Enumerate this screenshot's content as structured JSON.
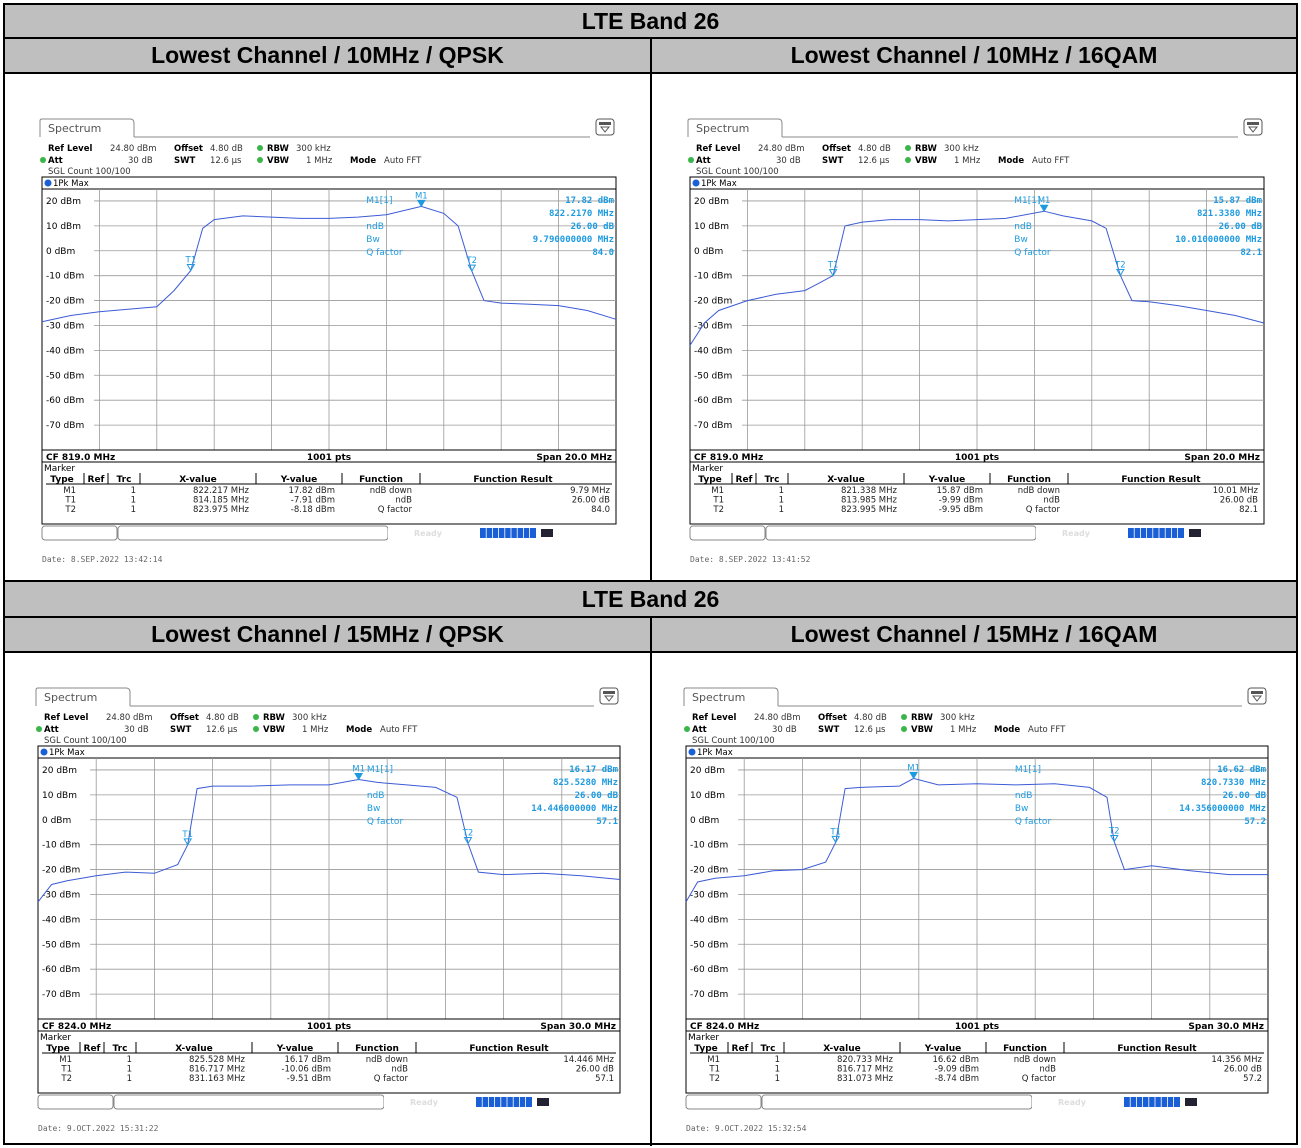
{
  "section_titles": [
    "LTE Band 26",
    "LTE Band 26"
  ],
  "cells": [
    {
      "title": "Lowest Channel / 10MHz / QPSK",
      "spectrum_label": "Spectrum",
      "ref_level_label": "Ref Level",
      "ref_level": "24.80 dBm",
      "offset_label": "Offset",
      "offset": "4.80 dB",
      "rbw_label": "RBW",
      "rbw": "300 kHz",
      "att_label": "Att",
      "att": "30 dB",
      "swt_label": "SWT",
      "swt": "12.6 µs",
      "vbw_label": "VBW",
      "vbw": "1 MHz",
      "mode_label": "Mode",
      "mode": "Auto FFT",
      "sgl_count": "SGL Count 100/100",
      "trace_label": "1Pk Max",
      "cf": "CF 819.0 MHz",
      "pts": "1001 pts",
      "span": "Span 20.0 MHz",
      "marker_label": "Marker",
      "info_labels": [
        "M1[1]",
        "ndB",
        "Bw",
        "Q factor"
      ],
      "info_values": [
        "17.82 dBm",
        "822.2170 MHz",
        "26.00 dB",
        "9.790000000 MHz",
        "84.0"
      ],
      "marker_headers": [
        "Type",
        "Ref",
        "Trc",
        "X-value",
        "Y-value",
        "Function",
        "Function Result"
      ],
      "marker_rows": [
        [
          "M1",
          "",
          "1",
          "822.217 MHz",
          "17.82 dBm",
          "ndB down",
          "9.79 MHz"
        ],
        [
          "T1",
          "",
          "1",
          "814.185 MHz",
          "-7.91 dBm",
          "ndB",
          "26.00 dB"
        ],
        [
          "T2",
          "",
          "1",
          "823.975 MHz",
          "-8.18 dBm",
          "Q factor",
          "84.0"
        ]
      ],
      "date": "Date: 8.SEP.2022  13:42:14",
      "status_text": "Ready"
    },
    {
      "title": "Lowest Channel / 10MHz / 16QAM",
      "spectrum_label": "Spectrum",
      "ref_level_label": "Ref Level",
      "ref_level": "24.80 dBm",
      "offset_label": "Offset",
      "offset": "4.80 dB",
      "rbw_label": "RBW",
      "rbw": "300 kHz",
      "att_label": "Att",
      "att": "30 dB",
      "swt_label": "SWT",
      "swt": "12.6 µs",
      "vbw_label": "VBW",
      "vbw": "1 MHz",
      "mode_label": "Mode",
      "mode": "Auto FFT",
      "sgl_count": "SGL Count 100/100",
      "trace_label": "1Pk Max",
      "cf": "CF 819.0 MHz",
      "pts": "1001 pts",
      "span": "Span 20.0 MHz",
      "marker_label": "Marker",
      "info_labels": [
        "M1[1]",
        "ndB",
        "Bw",
        "Q factor"
      ],
      "info_values": [
        "15.87 dBm",
        "821.3380 MHz",
        "26.00 dB",
        "10.010000000 MHz",
        "82.1"
      ],
      "marker_headers": [
        "Type",
        "Ref",
        "Trc",
        "X-value",
        "Y-value",
        "Function",
        "Function Result"
      ],
      "marker_rows": [
        [
          "M1",
          "",
          "1",
          "821.338 MHz",
          "15.87 dBm",
          "ndB down",
          "10.01 MHz"
        ],
        [
          "T1",
          "",
          "1",
          "813.985 MHz",
          "-9.99 dBm",
          "ndB",
          "26.00 dB"
        ],
        [
          "T2",
          "",
          "1",
          "823.995 MHz",
          "-9.95 dBm",
          "Q factor",
          "82.1"
        ]
      ],
      "date": "Date: 8.SEP.2022  13:41:52",
      "status_text": "Ready"
    },
    {
      "title": "Lowest Channel / 15MHz / QPSK",
      "spectrum_label": "Spectrum",
      "ref_level_label": "Ref Level",
      "ref_level": "24.80 dBm",
      "offset_label": "Offset",
      "offset": "4.80 dB",
      "rbw_label": "RBW",
      "rbw": "300 kHz",
      "att_label": "Att",
      "att": "30 dB",
      "swt_label": "SWT",
      "swt": "12.6 µs",
      "vbw_label": "VBW",
      "vbw": "1 MHz",
      "mode_label": "Mode",
      "mode": "Auto FFT",
      "sgl_count": "SGL Count 100/100",
      "trace_label": "1Pk Max",
      "cf": "CF 824.0 MHz",
      "pts": "1001 pts",
      "span": "Span 30.0 MHz",
      "marker_label": "Marker",
      "info_labels": [
        "M1[1]",
        "ndB",
        "Bw",
        "Q factor"
      ],
      "info_values": [
        "16.17 dBm",
        "825.5280 MHz",
        "26.00 dB",
        "14.446000000 MHz",
        "57.1"
      ],
      "marker_headers": [
        "Type",
        "Ref",
        "Trc",
        "X-value",
        "Y-value",
        "Function",
        "Function Result"
      ],
      "marker_rows": [
        [
          "M1",
          "",
          "1",
          "825.528 MHz",
          "16.17 dBm",
          "ndB down",
          "14.446 MHz"
        ],
        [
          "T1",
          "",
          "1",
          "816.717 MHz",
          "-10.06 dBm",
          "ndB",
          "26.00 dB"
        ],
        [
          "T2",
          "",
          "1",
          "831.163 MHz",
          "-9.51 dBm",
          "Q factor",
          "57.1"
        ]
      ],
      "date": "Date: 9.OCT.2022  15:31:22",
      "status_text": "Ready"
    },
    {
      "title": "Lowest Channel / 15MHz / 16QAM",
      "spectrum_label": "Spectrum",
      "ref_level_label": "Ref Level",
      "ref_level": "24.80 dBm",
      "offset_label": "Offset",
      "offset": "4.80 dB",
      "rbw_label": "RBW",
      "rbw": "300 kHz",
      "att_label": "Att",
      "att": "30 dB",
      "swt_label": "SWT",
      "swt": "12.6 µs",
      "vbw_label": "VBW",
      "vbw": "1 MHz",
      "mode_label": "Mode",
      "mode": "Auto FFT",
      "sgl_count": "SGL Count 100/100",
      "trace_label": "1Pk Max",
      "cf": "CF 824.0 MHz",
      "pts": "1001 pts",
      "span": "Span 30.0 MHz",
      "marker_label": "Marker",
      "info_labels": [
        "M1[1]",
        "ndB",
        "Bw",
        "Q factor"
      ],
      "info_values": [
        "16.62 dBm",
        "820.7330 MHz",
        "26.00 dB",
        "14.356000000 MHz",
        "57.2"
      ],
      "marker_headers": [
        "Type",
        "Ref",
        "Trc",
        "X-value",
        "Y-value",
        "Function",
        "Function Result"
      ],
      "marker_rows": [
        [
          "M1",
          "",
          "1",
          "820.733 MHz",
          "16.62 dBm",
          "ndB down",
          "14.356 MHz"
        ],
        [
          "T1",
          "",
          "1",
          "816.717 MHz",
          "-9.09 dBm",
          "ndB",
          "26.00 dB"
        ],
        [
          "T2",
          "",
          "1",
          "831.073 MHz",
          "-8.74 dBm",
          "Q factor",
          "57.2"
        ]
      ],
      "date": "Date: 9.OCT.2022  15:32:54",
      "status_text": "Ready"
    }
  ],
  "chart_data": [
    {
      "type": "line",
      "title": "Lowest Channel / 10MHz / QPSK",
      "ylabel": "dBm",
      "y_ticks": [
        "20 dBm",
        "10 dBm",
        "0 dBm",
        "-10 dBm",
        "-20 dBm",
        "-30 dBm",
        "-40 dBm",
        "-50 dBm",
        "-60 dBm",
        "-70 dBm"
      ],
      "ylim": [
        -80,
        24.8
      ],
      "xlim": [
        809.0,
        829.0
      ],
      "x_unit": "MHz",
      "grid": true,
      "series": [
        {
          "x": [
            809.0,
            810.0,
            811.0,
            812.0,
            813.0,
            813.6,
            814.185,
            814.6,
            815.0,
            816.0,
            817.0,
            818.0,
            819.0,
            820.0,
            821.0,
            822.217,
            823.0,
            823.5,
            823.975,
            824.4,
            825.0,
            826.0,
            827.0,
            828.0,
            829.0
          ],
          "y": [
            -28.5,
            -26,
            -24.5,
            -23.5,
            -22.5,
            -16,
            -7.91,
            9,
            12.5,
            14,
            13.5,
            13,
            13,
            13.5,
            14.5,
            17.82,
            15,
            10,
            -8.18,
            -20,
            -21,
            -21.5,
            -22,
            -24,
            -27.5
          ]
        }
      ],
      "markers": [
        {
          "name": "M1",
          "x": 822.217,
          "y": 17.82
        },
        {
          "name": "T1",
          "x": 814.185,
          "y": -7.91
        },
        {
          "name": "T2",
          "x": 823.975,
          "y": -8.18
        }
      ]
    },
    {
      "type": "line",
      "title": "Lowest Channel / 10MHz / 16QAM",
      "ylabel": "dBm",
      "y_ticks": [
        "20 dBm",
        "10 dBm",
        "0 dBm",
        "-10 dBm",
        "-20 dBm",
        "-30 dBm",
        "-40 dBm",
        "-50 dBm",
        "-60 dBm",
        "-70 dBm"
      ],
      "ylim": [
        -80,
        24.8
      ],
      "xlim": [
        809.0,
        829.0
      ],
      "x_unit": "MHz",
      "grid": true,
      "series": [
        {
          "x": [
            809.0,
            809.5,
            810.0,
            811.0,
            812.0,
            813.0,
            813.5,
            813.985,
            814.4,
            815.0,
            816.0,
            817.0,
            818.0,
            819.0,
            820.0,
            821.338,
            822.0,
            823.0,
            823.5,
            823.995,
            824.4,
            825.0,
            826.0,
            827.0,
            828.0,
            829.0
          ],
          "y": [
            -38,
            -29,
            -24,
            -20,
            -17.5,
            -16,
            -13,
            -9.99,
            10,
            11.5,
            12.5,
            12.5,
            12,
            12.5,
            13,
            15.87,
            14,
            12,
            9,
            -9.95,
            -20,
            -20.5,
            -22,
            -24,
            -26,
            -29
          ]
        }
      ],
      "markers": [
        {
          "name": "M1",
          "x": 821.338,
          "y": 15.87
        },
        {
          "name": "T1",
          "x": 813.985,
          "y": -9.99
        },
        {
          "name": "T2",
          "x": 823.995,
          "y": -9.95
        }
      ]
    },
    {
      "type": "line",
      "title": "Lowest Channel / 15MHz / QPSK",
      "ylabel": "dBm",
      "y_ticks": [
        "20 dBm",
        "10 dBm",
        "0 dBm",
        "-10 dBm",
        "-20 dBm",
        "-30 dBm",
        "-40 dBm",
        "-50 dBm",
        "-60 dBm",
        "-70 dBm"
      ],
      "ylim": [
        -80,
        24.8
      ],
      "xlim": [
        809.0,
        839.0
      ],
      "x_unit": "MHz",
      "grid": true,
      "series": [
        {
          "x": [
            809.0,
            809.7,
            810.5,
            812.0,
            813.5,
            815.0,
            816.2,
            816.717,
            817.2,
            818.0,
            820.0,
            822.0,
            824.0,
            825.528,
            826.5,
            828.0,
            829.5,
            830.6,
            831.163,
            831.7,
            833.0,
            835.0,
            837.0,
            839.0
          ],
          "y": [
            -33,
            -26,
            -24.5,
            -22.5,
            -21,
            -21.5,
            -18,
            -10.06,
            12.5,
            13.5,
            13.5,
            14,
            14,
            16.17,
            15,
            14,
            13,
            9,
            -9.51,
            -21,
            -22,
            -21.5,
            -22.5,
            -24
          ]
        }
      ],
      "markers": [
        {
          "name": "M1",
          "x": 825.528,
          "y": 16.17
        },
        {
          "name": "T1",
          "x": 816.717,
          "y": -10.06
        },
        {
          "name": "T2",
          "x": 831.163,
          "y": -9.51
        }
      ]
    },
    {
      "type": "line",
      "title": "Lowest Channel / 15MHz / 16QAM",
      "ylabel": "dBm",
      "y_ticks": [
        "20 dBm",
        "10 dBm",
        "0 dBm",
        "-10 dBm",
        "-20 dBm",
        "-30 dBm",
        "-40 dBm",
        "-50 dBm",
        "-60 dBm",
        "-70 dBm"
      ],
      "ylim": [
        -80,
        24.8
      ],
      "xlim": [
        809.0,
        839.0
      ],
      "x_unit": "MHz",
      "grid": true,
      "series": [
        {
          "x": [
            809.0,
            809.6,
            810.5,
            812.0,
            813.5,
            815.0,
            816.2,
            816.717,
            817.2,
            818.0,
            820.0,
            820.733,
            822.0,
            824.0,
            826.0,
            828.0,
            829.8,
            830.7,
            831.073,
            831.6,
            833.0,
            835.0,
            837.0,
            839.0
          ],
          "y": [
            -33,
            -25,
            -23.5,
            -22.5,
            -20.5,
            -20,
            -17,
            -9.09,
            12.5,
            13,
            13.5,
            16.62,
            14,
            14.5,
            14,
            14.5,
            13,
            9,
            -8.74,
            -20,
            -18.5,
            -20.5,
            -22,
            -22
          ]
        }
      ],
      "markers": [
        {
          "name": "M1",
          "x": 820.733,
          "y": 16.62
        },
        {
          "name": "T1",
          "x": 816.717,
          "y": -9.09
        },
        {
          "name": "T2",
          "x": 831.073,
          "y": -8.74
        }
      ]
    }
  ]
}
